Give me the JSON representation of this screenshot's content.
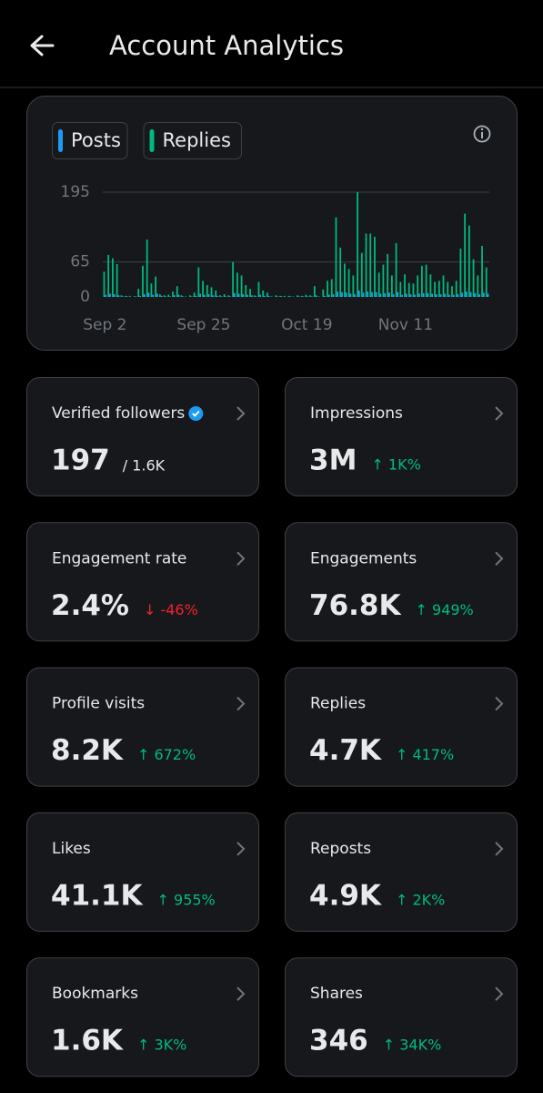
{
  "header": {
    "title": "Account Analytics"
  },
  "chart_data": {
    "type": "bar",
    "categories": [
      "Sep 2",
      null,
      null,
      null,
      null,
      null,
      null,
      null,
      null,
      null,
      null,
      null,
      null,
      null,
      null,
      null,
      null,
      null,
      null,
      null,
      null,
      null,
      null,
      "Sep 25",
      null,
      null,
      null,
      null,
      null,
      null,
      null,
      null,
      null,
      null,
      null,
      null,
      null,
      null,
      null,
      null,
      null,
      null,
      null,
      null,
      null,
      null,
      null,
      "Oct 19",
      null,
      null,
      null,
      null,
      null,
      null,
      null,
      null,
      null,
      null,
      null,
      null,
      null,
      null,
      null,
      null,
      null,
      null,
      null,
      null,
      null,
      null,
      "Nov 11",
      null,
      null,
      null,
      null,
      null,
      null,
      null,
      null,
      null,
      null,
      null,
      null,
      null,
      null,
      null,
      null,
      null,
      null,
      null
    ],
    "series": [
      {
        "name": "Posts",
        "color": "#1d9bf0",
        "values": [
          4,
          6,
          5,
          3,
          1,
          1,
          0,
          1,
          2,
          5,
          8,
          4,
          6,
          2,
          1,
          1,
          3,
          4,
          1,
          0,
          1,
          2,
          6,
          4,
          5,
          3,
          2,
          1,
          1,
          1,
          7,
          6,
          5,
          4,
          3,
          1,
          4,
          2,
          2,
          0,
          1,
          1,
          0,
          1,
          0,
          1,
          1,
          1,
          1,
          3,
          0,
          2,
          4,
          5,
          10,
          9,
          8,
          6,
          5,
          12,
          8,
          10,
          9,
          9,
          6,
          7,
          8,
          5,
          9,
          4,
          6,
          5,
          4,
          6,
          7,
          7,
          6,
          5,
          5,
          6,
          4,
          4,
          5,
          8,
          10,
          9,
          7,
          5,
          8,
          6
        ]
      },
      {
        "name": "Replies",
        "color": "#00ba7c",
        "values": [
          47,
          78,
          72,
          61,
          3,
          2,
          2,
          1,
          15,
          58,
          107,
          25,
          38,
          5,
          3,
          4,
          10,
          20,
          3,
          1,
          3,
          8,
          55,
          30,
          22,
          18,
          12,
          3,
          5,
          3,
          65,
          45,
          40,
          22,
          15,
          3,
          28,
          12,
          8,
          1,
          3,
          2,
          2,
          2,
          1,
          3,
          2,
          4,
          3,
          20,
          1,
          14,
          30,
          33,
          148,
          92,
          62,
          52,
          40,
          195,
          82,
          118,
          118,
          112,
          45,
          60,
          80,
          40,
          100,
          28,
          42,
          26,
          25,
          40,
          58,
          60,
          42,
          28,
          30,
          40,
          28,
          20,
          30,
          90,
          155,
          133,
          70,
          40,
          95,
          55
        ]
      }
    ],
    "ylim": [
      0,
      195
    ],
    "yticks": [
      0,
      65,
      195
    ],
    "grid": true
  },
  "cards": [
    {
      "label": "Verified followers",
      "value": "197",
      "extra": "/ 1.6K"
    },
    {
      "label": "Impressions",
      "value": "3M",
      "change": "↑ 1K%",
      "color": "#00ba7c"
    },
    {
      "label": "Engagement rate",
      "value": "2.4%",
      "change": "↓ -46%",
      "color": "#f4212e"
    },
    {
      "label": "Engagements",
      "value": "76.8K",
      "change": "↑ 949%",
      "color": "#00ba7c"
    },
    {
      "label": "Profile visits",
      "value": "8.2K",
      "change": "↑ 672%",
      "color": "#00ba7c"
    },
    {
      "label": "Replies",
      "value": "4.7K",
      "change": "↑ 417%",
      "color": "#00ba7c"
    },
    {
      "label": "Likes",
      "value": "41.1K",
      "change": "↑ 955%",
      "color": "#00ba7c"
    },
    {
      "label": "Reposts",
      "value": "4.9K",
      "change": "↑ 2K%",
      "color": "#00ba7c"
    },
    {
      "label": "Bookmarks",
      "value": "1.6K",
      "change": "↑ 3K%",
      "color": "#00ba7c"
    },
    {
      "label": "Shares",
      "value": "346",
      "change": "↑ 34K%",
      "color": "#00ba7c"
    }
  ]
}
